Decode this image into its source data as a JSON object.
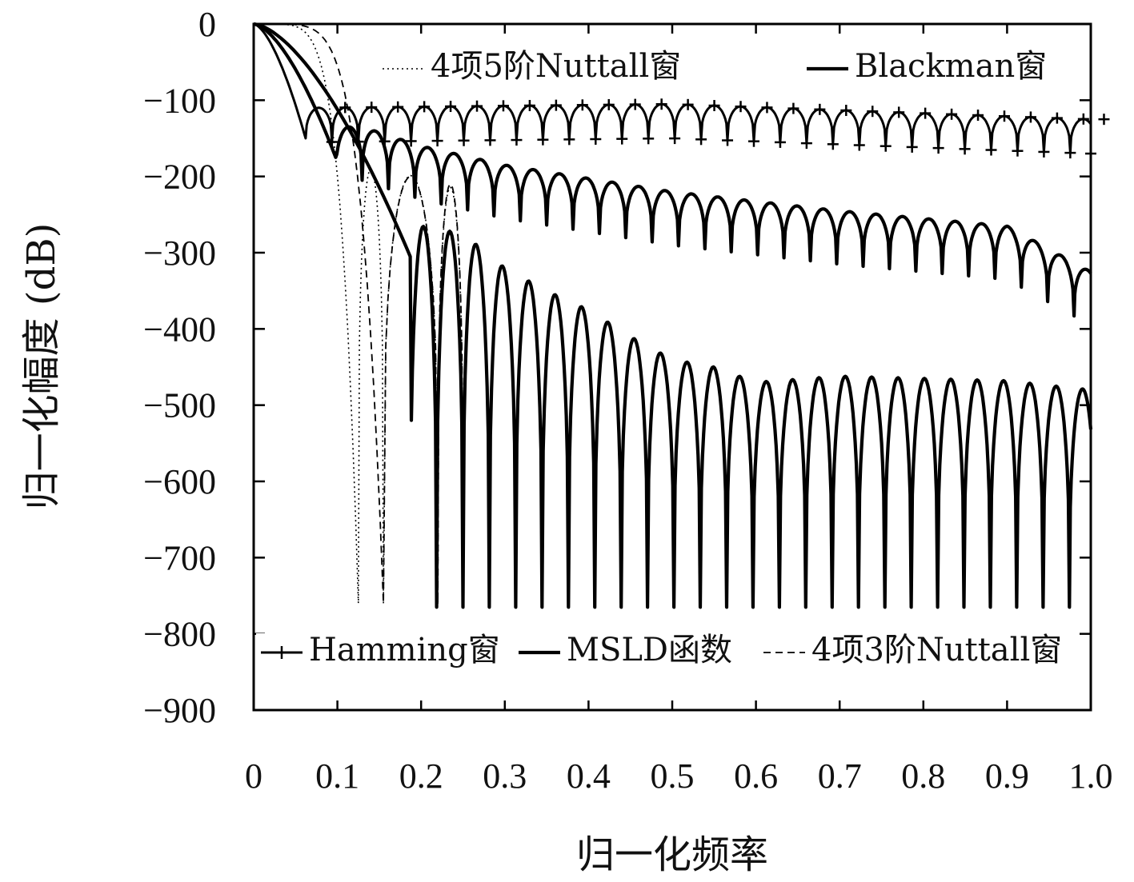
{
  "chart_data": {
    "type": "line",
    "title": "",
    "xlabel": "归一化频率",
    "ylabel": "归一化幅度 (dB)",
    "xlim": [
      0,
      1.0
    ],
    "ylim": [
      -900,
      0
    ],
    "x_ticks": [
      0,
      0.1,
      0.2,
      0.3,
      0.4,
      0.5,
      0.6,
      0.7,
      0.8,
      0.9,
      1.0
    ],
    "x_tick_labels": [
      "0",
      "0.1",
      "0.2",
      "0.3",
      "0.4",
      "0.5",
      "0.6",
      "0.7",
      "0.8",
      "0.9",
      "1.0"
    ],
    "y_ticks": [
      0,
      -100,
      -200,
      -300,
      -400,
      -500,
      -600,
      -700,
      -800,
      -900
    ],
    "y_tick_labels": [
      "0",
      "−100",
      "−200",
      "−300",
      "−400",
      "−500",
      "−600",
      "−700",
      "−800",
      "−900"
    ],
    "grid": false,
    "series": [
      {
        "name": "Hamming窗",
        "style": "solid-plus",
        "mainlobe_end": 0.062,
        "sidelobe_period": 0.0315,
        "peaks": [
          [
            0.07,
            -110
          ],
          [
            0.5,
            -105
          ],
          [
            1.0,
            -125
          ]
        ],
        "null_depth": 45
      },
      {
        "name": "Blackman窗",
        "style": "solid",
        "mainlobe_end": 0.098,
        "sidelobe_period": 0.0315,
        "peaks": [
          [
            0.13,
            -135
          ],
          [
            0.2,
            -160
          ],
          [
            0.3,
            -185
          ],
          [
            0.5,
            -220
          ],
          [
            0.7,
            -245
          ],
          [
            0.9,
            -265
          ],
          [
            1.0,
            -325
          ]
        ],
        "null_depth": 70
      },
      {
        "name": "4项5阶Nuttall窗",
        "style": "dotted",
        "mainlobe_end": 0.125,
        "nulls_x": [
          0.125,
          0.155,
          0.22,
          0.25
        ],
        "peaks": [
          [
            0.14,
            -190
          ],
          [
            0.17,
            -190
          ],
          [
            0.21,
            -210
          ],
          [
            0.24,
            -215
          ]
        ],
        "null_bottom": -760
      },
      {
        "name": "4项3阶Nuttall窗",
        "style": "dashed",
        "mainlobe_end": 0.155,
        "nulls_x": [
          0.155,
          0.22,
          0.25
        ],
        "peaks": [
          [
            0.19,
            -200
          ],
          [
            0.235,
            -210
          ]
        ],
        "null_bottom": -760
      },
      {
        "name": "MSLD函数",
        "style": "solid",
        "mainlobe_end": 0.187,
        "sidelobe_period": 0.0315,
        "peaks": [
          [
            0.2,
            -265
          ],
          [
            0.25,
            -275
          ],
          [
            0.3,
            -320
          ],
          [
            0.35,
            -350
          ],
          [
            0.4,
            -375
          ],
          [
            0.45,
            -410
          ],
          [
            0.5,
            -440
          ],
          [
            0.55,
            -450
          ],
          [
            0.6,
            -470
          ],
          [
            0.7,
            -462
          ],
          [
            0.8,
            -465
          ],
          [
            0.9,
            -468
          ],
          [
            1.0,
            -480
          ]
        ],
        "null_bottom": -765
      }
    ],
    "legend_top": [
      "4项5阶Nuttall窗",
      "Blackman窗"
    ],
    "legend_bottom": [
      "Hamming窗",
      "MSLD函数",
      "4项3阶Nuttall窗"
    ]
  }
}
